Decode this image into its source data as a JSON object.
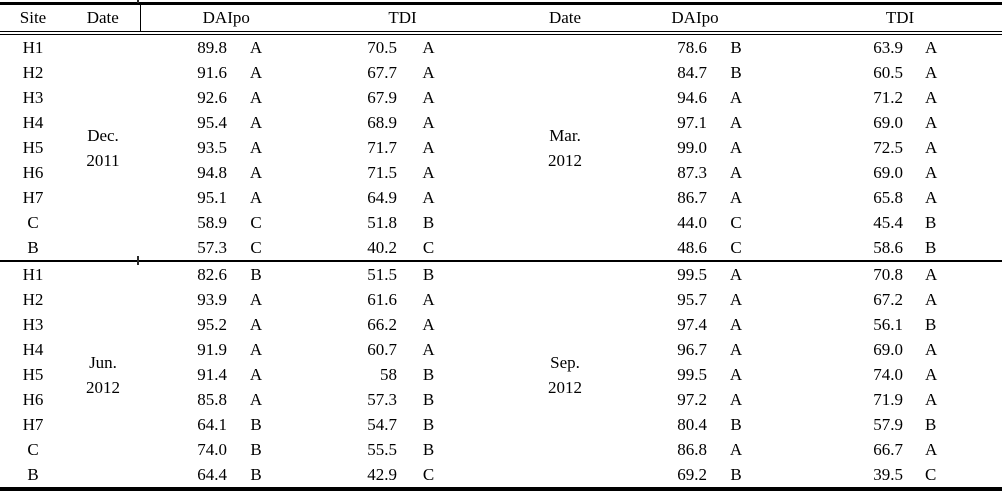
{
  "page": {
    "background_color": "#ffffff",
    "text_color": "#000000",
    "rule_color": "#000000"
  },
  "table": {
    "header": {
      "site": "Site",
      "date_left": "Date",
      "daipo_left": "DAIpo",
      "tdi_left": "TDI",
      "date_right": "Date",
      "daipo_right": "DAIpo",
      "tdi_right": "TDI"
    },
    "sections": [
      {
        "date_left": [
          "Dec.",
          "2011"
        ],
        "date_right": [
          "Mar.",
          "2012"
        ],
        "rows": [
          {
            "site": "H1",
            "daipo_left": "89.8",
            "daipo_left_grade": "A",
            "tdi_left": "70.5",
            "tdi_left_grade": "A",
            "daipo_right": "78.6",
            "daipo_right_grade": "B",
            "tdi_right": "63.9",
            "tdi_right_grade": "A"
          },
          {
            "site": "H2",
            "daipo_left": "91.6",
            "daipo_left_grade": "A",
            "tdi_left": "67.7",
            "tdi_left_grade": "A",
            "daipo_right": "84.7",
            "daipo_right_grade": "B",
            "tdi_right": "60.5",
            "tdi_right_grade": "A"
          },
          {
            "site": "H3",
            "daipo_left": "92.6",
            "daipo_left_grade": "A",
            "tdi_left": "67.9",
            "tdi_left_grade": "A",
            "daipo_right": "94.6",
            "daipo_right_grade": "A",
            "tdi_right": "71.2",
            "tdi_right_grade": "A"
          },
          {
            "site": "H4",
            "daipo_left": "95.4",
            "daipo_left_grade": "A",
            "tdi_left": "68.9",
            "tdi_left_grade": "A",
            "daipo_right": "97.1",
            "daipo_right_grade": "A",
            "tdi_right": "69.0",
            "tdi_right_grade": "A"
          },
          {
            "site": "H5",
            "daipo_left": "93.5",
            "daipo_left_grade": "A",
            "tdi_left": "71.7",
            "tdi_left_grade": "A",
            "daipo_right": "99.0",
            "daipo_right_grade": "A",
            "tdi_right": "72.5",
            "tdi_right_grade": "A"
          },
          {
            "site": "H6",
            "daipo_left": "94.8",
            "daipo_left_grade": "A",
            "tdi_left": "71.5",
            "tdi_left_grade": "A",
            "daipo_right": "87.3",
            "daipo_right_grade": "A",
            "tdi_right": "69.0",
            "tdi_right_grade": "A"
          },
          {
            "site": "H7",
            "daipo_left": "95.1",
            "daipo_left_grade": "A",
            "tdi_left": "64.9",
            "tdi_left_grade": "A",
            "daipo_right": "86.7",
            "daipo_right_grade": "A",
            "tdi_right": "65.8",
            "tdi_right_grade": "A"
          },
          {
            "site": "C",
            "daipo_left": "58.9",
            "daipo_left_grade": "C",
            "tdi_left": "51.8",
            "tdi_left_grade": "B",
            "daipo_right": "44.0",
            "daipo_right_grade": "C",
            "tdi_right": "45.4",
            "tdi_right_grade": "B"
          },
          {
            "site": "B",
            "daipo_left": "57.3",
            "daipo_left_grade": "C",
            "tdi_left": "40.2",
            "tdi_left_grade": "C",
            "daipo_right": "48.6",
            "daipo_right_grade": "C",
            "tdi_right": "58.6",
            "tdi_right_grade": "B"
          }
        ]
      },
      {
        "date_left": [
          "Jun.",
          "2012"
        ],
        "date_right": [
          "Sep.",
          "2012"
        ],
        "rows": [
          {
            "site": "H1",
            "daipo_left": "82.6",
            "daipo_left_grade": "B",
            "tdi_left": "51.5",
            "tdi_left_grade": "B",
            "daipo_right": "99.5",
            "daipo_right_grade": "A",
            "tdi_right": "70.8",
            "tdi_right_grade": "A"
          },
          {
            "site": "H2",
            "daipo_left": "93.9",
            "daipo_left_grade": "A",
            "tdi_left": "61.6",
            "tdi_left_grade": "A",
            "daipo_right": "95.7",
            "daipo_right_grade": "A",
            "tdi_right": "67.2",
            "tdi_right_grade": "A"
          },
          {
            "site": "H3",
            "daipo_left": "95.2",
            "daipo_left_grade": "A",
            "tdi_left": "66.2",
            "tdi_left_grade": "A",
            "daipo_right": "97.4",
            "daipo_right_grade": "A",
            "tdi_right": "56.1",
            "tdi_right_grade": "B"
          },
          {
            "site": "H4",
            "daipo_left": "91.9",
            "daipo_left_grade": "A",
            "tdi_left": "60.7",
            "tdi_left_grade": "A",
            "daipo_right": "96.7",
            "daipo_right_grade": "A",
            "tdi_right": "69.0",
            "tdi_right_grade": "A"
          },
          {
            "site": "H5",
            "daipo_left": "91.4",
            "daipo_left_grade": "A",
            "tdi_left": "58",
            "tdi_left_grade": "B",
            "daipo_right": "99.5",
            "daipo_right_grade": "A",
            "tdi_right": "74.0",
            "tdi_right_grade": "A"
          },
          {
            "site": "H6",
            "daipo_left": "85.8",
            "daipo_left_grade": "A",
            "tdi_left": "57.3",
            "tdi_left_grade": "B",
            "daipo_right": "97.2",
            "daipo_right_grade": "A",
            "tdi_right": "71.9",
            "tdi_right_grade": "A"
          },
          {
            "site": "H7",
            "daipo_left": "64.1",
            "daipo_left_grade": "B",
            "tdi_left": "54.7",
            "tdi_left_grade": "B",
            "daipo_right": "80.4",
            "daipo_right_grade": "B",
            "tdi_right": "57.9",
            "tdi_right_grade": "B"
          },
          {
            "site": "C",
            "daipo_left": "74.0",
            "daipo_left_grade": "B",
            "tdi_left": "55.5",
            "tdi_left_grade": "B",
            "daipo_right": "86.8",
            "daipo_right_grade": "A",
            "tdi_right": "66.7",
            "tdi_right_grade": "A"
          },
          {
            "site": "B",
            "daipo_left": "64.4",
            "daipo_left_grade": "B",
            "tdi_left": "42.9",
            "tdi_left_grade": "C",
            "daipo_right": "69.2",
            "daipo_right_grade": "B",
            "tdi_right": "39.5",
            "tdi_right_grade": "C"
          }
        ]
      }
    ]
  }
}
